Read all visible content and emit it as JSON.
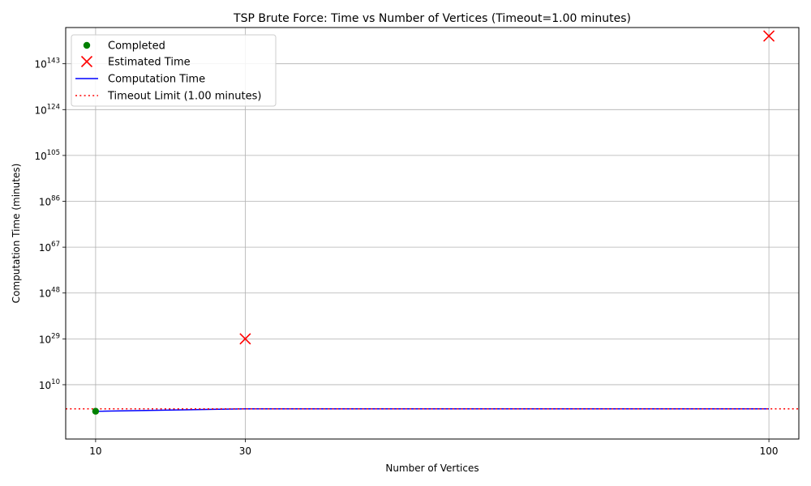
{
  "chart_data": {
    "type": "line",
    "title": "TSP Brute Force: Time vs Number of Vertices (Timeout=1.00 minutes)",
    "xlabel": "Number of Vertices",
    "ylabel": "Computation Time (minutes)",
    "y_scale": "log",
    "xlim": [
      6.0,
      104.0
    ],
    "ylim_log10": [
      -12.5,
      158.0
    ],
    "x_ticks": [
      10,
      30,
      100
    ],
    "y_ticks": [
      {
        "exp": 10,
        "base": "10",
        "sup": "10"
      },
      {
        "exp": 29,
        "base": "10",
        "sup": "29"
      },
      {
        "exp": 48,
        "base": "10",
        "sup": "48"
      },
      {
        "exp": 67,
        "base": "10",
        "sup": "67"
      },
      {
        "exp": 86,
        "base": "10",
        "sup": "86"
      },
      {
        "exp": 105,
        "base": "10",
        "sup": "105"
      },
      {
        "exp": 124,
        "base": "10",
        "sup": "124"
      },
      {
        "exp": 143,
        "base": "10",
        "sup": "143"
      }
    ],
    "grid": true,
    "legend_position": "top-left",
    "series": [
      {
        "name": "Completed",
        "kind": "scatter",
        "marker": "circle",
        "color": "#008000",
        "x": [
          10
        ],
        "y_log10": [
          -1.0
        ]
      },
      {
        "name": "Estimated Time",
        "kind": "scatter",
        "marker": "x",
        "color": "#ff0000",
        "x": [
          30,
          100
        ],
        "y_log10": [
          29.0,
          154.5
        ]
      },
      {
        "name": "Computation Time",
        "kind": "line",
        "color": "#0000ff",
        "x": [
          10,
          30,
          100
        ],
        "y_log10": [
          -1.0,
          0.0,
          0.0
        ]
      },
      {
        "name": "Timeout Limit (1.00 minutes)",
        "kind": "hline",
        "color": "#ff0000",
        "style": "dotted",
        "y_log10": 0.0
      }
    ]
  }
}
